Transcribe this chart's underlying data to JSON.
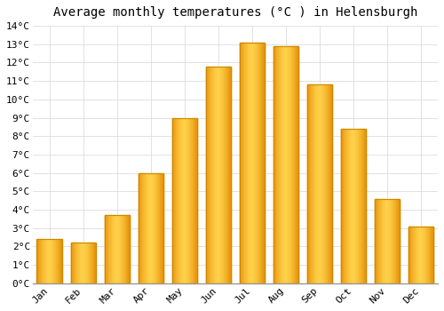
{
  "title": "Average monthly temperatures (°C ) in Helensburgh",
  "months": [
    "Jan",
    "Feb",
    "Mar",
    "Apr",
    "May",
    "Jun",
    "Jul",
    "Aug",
    "Sep",
    "Oct",
    "Nov",
    "Dec"
  ],
  "temperatures": [
    2.4,
    2.2,
    3.7,
    6.0,
    9.0,
    11.8,
    13.1,
    12.9,
    10.8,
    8.4,
    4.6,
    3.1
  ],
  "bar_color_light": "#FFD04A",
  "bar_color_mid": "#FFB800",
  "bar_color_dark": "#E8940A",
  "bar_edge_color": "#CC8800",
  "ylim": [
    0,
    14
  ],
  "yticks": [
    0,
    1,
    2,
    3,
    4,
    5,
    6,
    7,
    8,
    9,
    10,
    11,
    12,
    13,
    14
  ],
  "grid_color": "#dddddd",
  "bg_color": "#ffffff",
  "title_fontsize": 10,
  "tick_fontsize": 8,
  "font_family": "monospace",
  "bar_width": 0.75
}
